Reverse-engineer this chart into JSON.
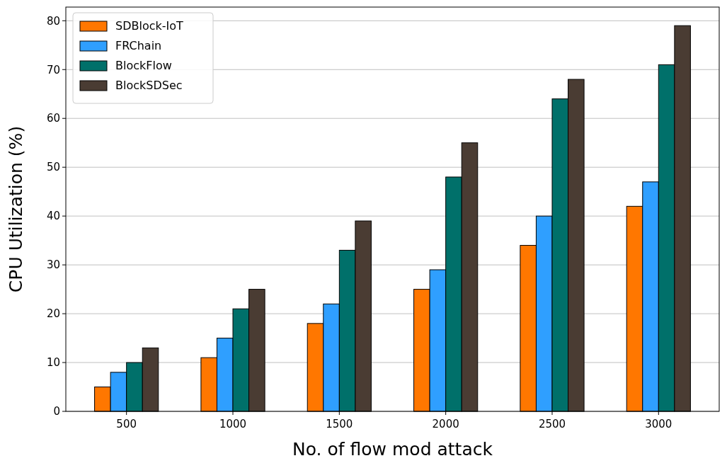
{
  "chart_data": {
    "type": "bar",
    "xlabel": "No. of flow mod attack",
    "ylabel": "CPU Utilization (%)",
    "categories": [
      "500",
      "1000",
      "1500",
      "2000",
      "2500",
      "3000"
    ],
    "series": [
      {
        "name": "SDBlock-IoT",
        "color": "#ff7700",
        "values": [
          5,
          11,
          18,
          25,
          34,
          42
        ]
      },
      {
        "name": "FRChain",
        "color": "#2f9fff",
        "values": [
          8,
          15,
          22,
          29,
          40,
          47
        ]
      },
      {
        "name": "BlockFlow",
        "color": "#00706a",
        "values": [
          10,
          21,
          33,
          48,
          64,
          71
        ]
      },
      {
        "name": "BlockSDSec",
        "color": "#4a3c33",
        "values": [
          13,
          25,
          39,
          55,
          68,
          79
        ]
      }
    ],
    "ylim": [
      0,
      82.8
    ],
    "yticks": [
      0,
      10,
      20,
      30,
      40,
      50,
      60,
      70,
      80
    ],
    "grid": "y",
    "legend": "top left"
  }
}
